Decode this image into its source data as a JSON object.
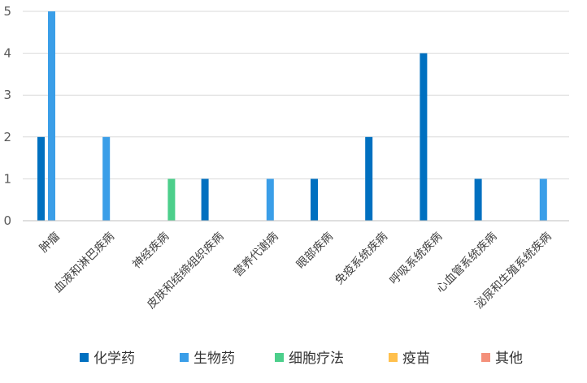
{
  "chart_data": {
    "type": "bar",
    "title": "",
    "xlabel": "",
    "ylabel": "",
    "ylim": [
      0,
      5
    ],
    "yticks": [
      0,
      1,
      2,
      3,
      4,
      5
    ],
    "grid": true,
    "legend_position": "bottom",
    "categories": [
      "肿瘤",
      "血液和淋巴疾病",
      "神经疾病",
      "皮肤和结缔组织疾病",
      "营养代谢病",
      "眼部疾病",
      "免疫系统疾病",
      "呼吸系统疾病",
      "心血管系统疾病",
      "泌尿和生殖系统疾病"
    ],
    "series": [
      {
        "name": "化学药",
        "color": "#0070C0",
        "values": [
          2,
          0,
          0,
          1,
          0,
          1,
          2,
          4,
          1,
          0
        ]
      },
      {
        "name": "生物药",
        "color": "#3A9EE8",
        "values": [
          5,
          2,
          0,
          0,
          1,
          0,
          0,
          0,
          0,
          1
        ]
      },
      {
        "name": "细胞疗法",
        "color": "#4CCF8B",
        "values": [
          0,
          0,
          1,
          0,
          0,
          0,
          0,
          0,
          0,
          0
        ]
      },
      {
        "name": "疫苗",
        "color": "#FFC04D",
        "values": [
          0,
          0,
          0,
          0,
          0,
          0,
          0,
          0,
          0,
          0
        ]
      },
      {
        "name": "其他",
        "color": "#F4907A",
        "values": [
          0,
          0,
          0,
          0,
          0,
          0,
          0,
          0,
          0,
          0
        ]
      }
    ]
  }
}
